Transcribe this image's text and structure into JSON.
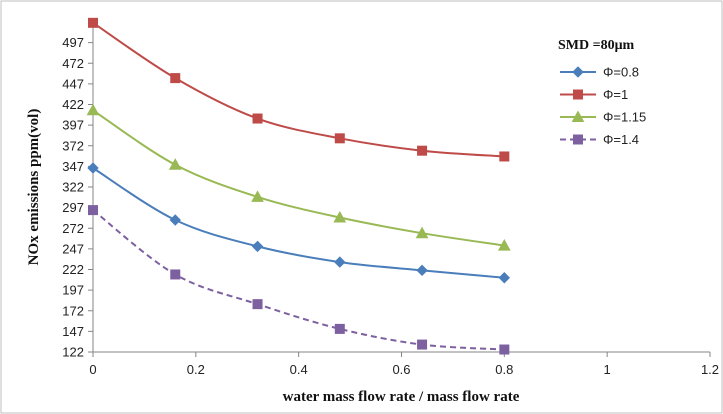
{
  "chart_data": {
    "type": "line",
    "title": "",
    "xlabel": "water mass flow rate / mass flow rate",
    "ylabel": "NOx emissions ppm(vol)",
    "xlim": [
      0,
      1.2
    ],
    "ylim": [
      122,
      522
    ],
    "x_ticks": [
      "0",
      "0.2",
      "0.4",
      "0.6",
      "0.8",
      "1",
      "1.2"
    ],
    "y_ticks": [
      "122",
      "147",
      "172",
      "197",
      "222",
      "247",
      "272",
      "297",
      "322",
      "347",
      "372",
      "397",
      "422",
      "447",
      "472",
      "497"
    ],
    "legend_title": "SMD =80μm",
    "legend_position": "top-right",
    "grid": false,
    "x": [
      0,
      0.16,
      0.32,
      0.48,
      0.64,
      0.8
    ],
    "series": [
      {
        "name": "Φ=0.8",
        "values": [
          345,
          282,
          250,
          231,
          221,
          212
        ],
        "color": "#4a7ebb",
        "marker": "diamond",
        "dash": "solid"
      },
      {
        "name": "Φ=1",
        "values": [
          521,
          454,
          405,
          381,
          366,
          359
        ],
        "color": "#be4b48",
        "marker": "square",
        "dash": "solid"
      },
      {
        "name": "Φ=1.15",
        "values": [
          415,
          349,
          310,
          285,
          266,
          251
        ],
        "color": "#98b954",
        "marker": "triangle",
        "dash": "solid"
      },
      {
        "name": "Φ=1.4",
        "values": [
          294,
          216,
          180,
          150,
          131,
          125
        ],
        "color": "#7d60a0",
        "marker": "square",
        "dash": "dashed"
      }
    ]
  }
}
